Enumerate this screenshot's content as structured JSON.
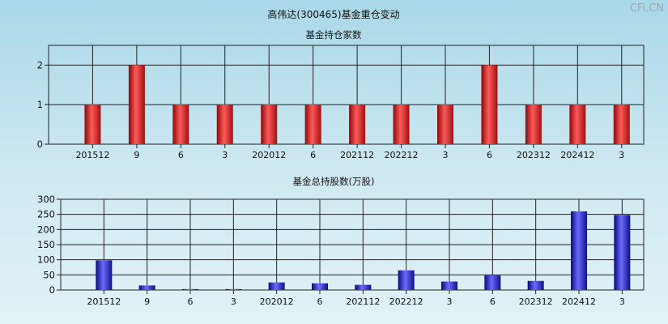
{
  "title": "高伟达(300465)基金重仓变动",
  "watermark": "CFi.CN",
  "charts": [
    {
      "type": "bar",
      "title": "基金持仓家数",
      "categories": [
        "201512",
        "9",
        "6",
        "3",
        "202012",
        "6",
        "202112",
        "202212",
        "3",
        "6",
        "202312",
        "202412",
        "3"
      ],
      "values": [
        1,
        2,
        1,
        1,
        1,
        1,
        1,
        1,
        1,
        2,
        1,
        1,
        1
      ],
      "ylim": [
        0,
        2.5
      ],
      "yticks": [
        0,
        1,
        2
      ],
      "color": "#e02020"
    },
    {
      "type": "bar",
      "title": "基金总持股数(万股)",
      "categories": [
        "201512",
        "9",
        "6",
        "3",
        "202012",
        "6",
        "202112",
        "202212",
        "3",
        "6",
        "202312",
        "202412",
        "3"
      ],
      "values": [
        98,
        15,
        3,
        3,
        25,
        22,
        17,
        65,
        28,
        48,
        30,
        260,
        248
      ],
      "ylim": [
        0,
        300
      ],
      "yticks": [
        0,
        50,
        100,
        150,
        200,
        250,
        300
      ],
      "color": "#2020d8"
    }
  ]
}
